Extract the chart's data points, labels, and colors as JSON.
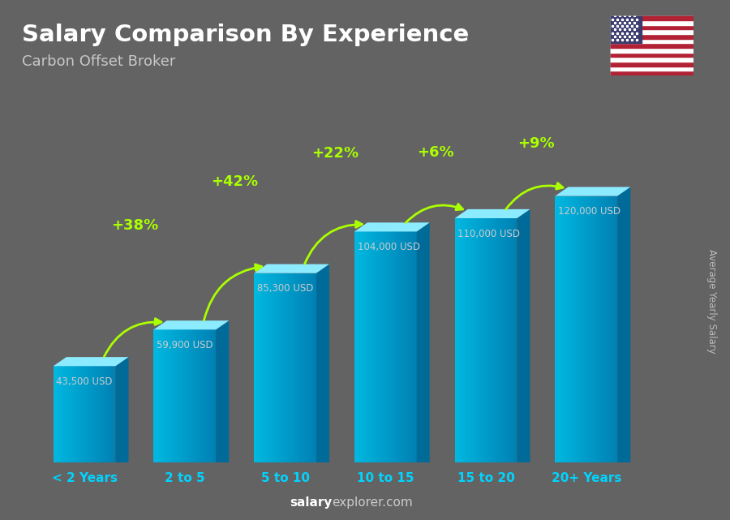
{
  "title": "Salary Comparison By Experience",
  "subtitle": "Carbon Offset Broker",
  "categories": [
    "< 2 Years",
    "2 to 5",
    "5 to 10",
    "10 to 15",
    "15 to 20",
    "20+ Years"
  ],
  "values": [
    43500,
    59900,
    85300,
    104000,
    110000,
    120000
  ],
  "salary_labels": [
    "43,500 USD",
    "59,900 USD",
    "85,300 USD",
    "104,000 USD",
    "110,000 USD",
    "120,000 USD"
  ],
  "pct_changes": [
    null,
    "+38%",
    "+42%",
    "+22%",
    "+6%",
    "+9%"
  ],
  "bg_color": "#636363",
  "title_color": "#ffffff",
  "subtitle_color": "#c8c8c8",
  "pct_color": "#aaff00",
  "salary_label_color": "#cccccc",
  "xlabel_color": "#00d4ff",
  "ylabel_text": "Average Yearly Salary",
  "ylabel_color": "#bbbbbb",
  "footer_bold": "salary",
  "footer_plain": "explorer.com",
  "footer_bold_color": "#ffffff",
  "footer_plain_color": "#cccccc",
  "ylim": [
    0,
    145000
  ],
  "bar_width": 0.62,
  "dx3d": 0.13,
  "bar_front_left": "#00b8e0",
  "bar_front_right": "#008fbb",
  "bar_top": "#a0eeff",
  "bar_side": "#005f80"
}
